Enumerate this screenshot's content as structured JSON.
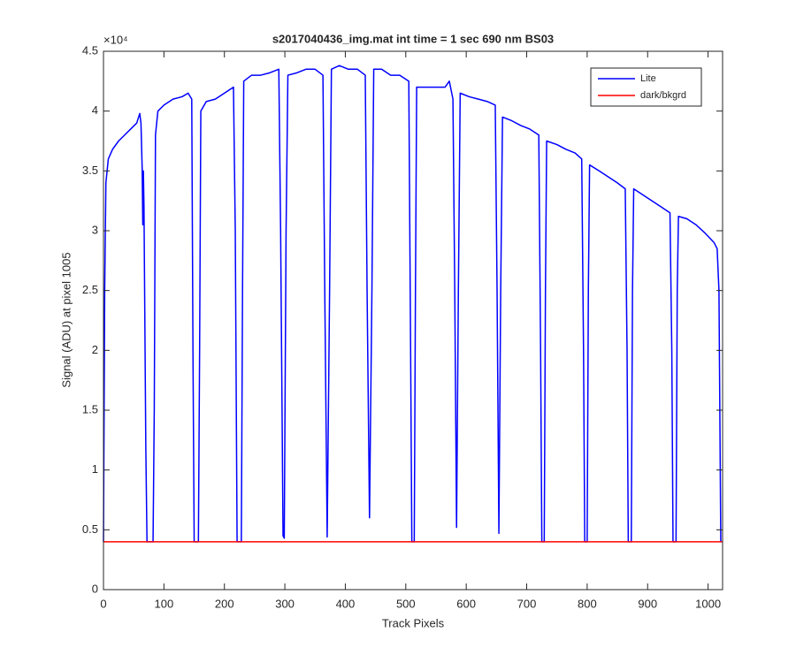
{
  "chart_data": {
    "type": "line",
    "title": "s2017040436_img.mat int time = 1 sec  690 nm BS03",
    "x_label": "Track Pixels",
    "y_label": "Signal (ADU) at pixel 1005",
    "y_multiplier": "×10⁴",
    "xlim": [
      0,
      1024
    ],
    "xticks": [
      0,
      100,
      200,
      300,
      400,
      500,
      600,
      700,
      800,
      900,
      1000
    ],
    "ylim": [
      0,
      4.5
    ],
    "yticks": [
      0,
      0.5,
      1,
      1.5,
      2,
      2.5,
      3,
      3.5,
      4,
      4.5
    ],
    "grid": false,
    "legend": "top-right",
    "series": [
      {
        "name": "Lite",
        "color": "#0000ff",
        "x": [
          0,
          2,
          4,
          8,
          15,
          25,
          35,
          45,
          55,
          60,
          62,
          64,
          65,
          66,
          67,
          70,
          72,
          82,
          84,
          86,
          90,
          100,
          115,
          130,
          140,
          146,
          148,
          150,
          157,
          159,
          161,
          170,
          185,
          200,
          215,
          218,
          221,
          228,
          230,
          232,
          245,
          260,
          275,
          290,
          293,
          297,
          299,
          302,
          305,
          320,
          335,
          350,
          363,
          366,
          370,
          374,
          377,
          390,
          405,
          420,
          433,
          436,
          440,
          444,
          447,
          460,
          475,
          490,
          505,
          508,
          510,
          514,
          516,
          518,
          535,
          550,
          565,
          572,
          578,
          581,
          584,
          587,
          590,
          605,
          620,
          635,
          648,
          651,
          654,
          657,
          660,
          675,
          690,
          705,
          720,
          723,
          725,
          729,
          731,
          733,
          750,
          765,
          780,
          791,
          794,
          796,
          800,
          802,
          804,
          820,
          835,
          850,
          863,
          866,
          868,
          873,
          875,
          877,
          892,
          907,
          922,
          937,
          940,
          942,
          947,
          949,
          951,
          965,
          980,
          995,
          1010,
          1015,
          1018,
          1021
        ],
        "values": [
          0.4,
          2.5,
          3.4,
          3.6,
          3.68,
          3.75,
          3.8,
          3.85,
          3.9,
          3.98,
          3.9,
          3.52,
          3.05,
          3.5,
          3.2,
          1.2,
          0.4,
          0.4,
          1.5,
          3.8,
          4.0,
          4.05,
          4.1,
          4.12,
          4.15,
          4.1,
          2.0,
          0.4,
          0.4,
          2.0,
          4.0,
          4.08,
          4.1,
          4.15,
          4.2,
          3.0,
          0.4,
          0.4,
          2.5,
          4.25,
          4.3,
          4.3,
          4.32,
          4.35,
          3.0,
          0.45,
          0.43,
          3.0,
          4.3,
          4.32,
          4.35,
          4.35,
          4.3,
          2.5,
          0.44,
          2.5,
          4.35,
          4.38,
          4.35,
          4.35,
          4.3,
          2.5,
          0.6,
          2.5,
          4.35,
          4.35,
          4.3,
          4.3,
          4.25,
          2.0,
          0.4,
          0.4,
          2.5,
          4.2,
          4.2,
          4.2,
          4.2,
          4.25,
          4.1,
          2.5,
          0.52,
          2.5,
          4.15,
          4.12,
          4.1,
          4.08,
          4.05,
          2.5,
          0.47,
          2.5,
          3.95,
          3.92,
          3.88,
          3.85,
          3.8,
          2.0,
          0.4,
          0.4,
          2.5,
          3.75,
          3.72,
          3.68,
          3.65,
          3.6,
          2.0,
          0.4,
          0.4,
          2.5,
          3.55,
          3.5,
          3.45,
          3.4,
          3.35,
          2.0,
          0.4,
          0.4,
          2.5,
          3.35,
          3.3,
          3.25,
          3.2,
          3.15,
          2.0,
          0.4,
          0.4,
          2.5,
          3.12,
          3.1,
          3.05,
          2.98,
          2.9,
          2.85,
          2.5,
          0.4
        ]
      },
      {
        "name": "dark/bkgrd",
        "color": "#ff0000",
        "x": [
          0,
          1024
        ],
        "values": [
          0.4,
          0.4
        ]
      }
    ]
  }
}
